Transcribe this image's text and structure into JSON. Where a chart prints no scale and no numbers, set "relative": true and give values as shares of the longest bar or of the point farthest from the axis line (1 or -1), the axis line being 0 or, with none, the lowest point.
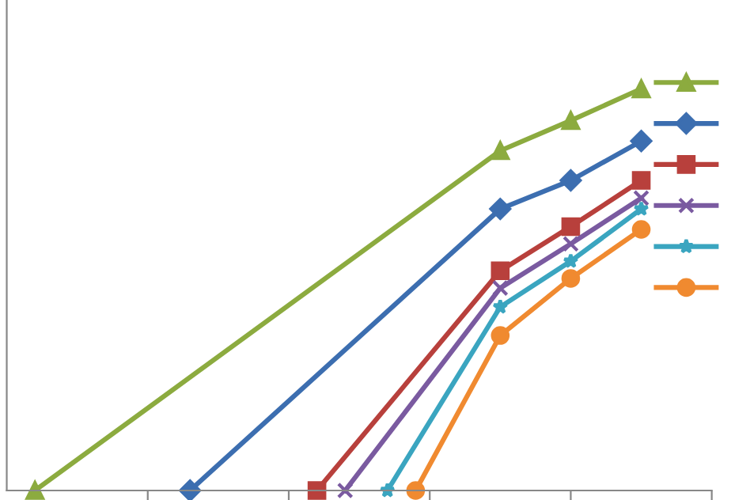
{
  "chart_data": {
    "type": "line",
    "relative": true,
    "line_style": "solid",
    "grid": false,
    "categories": [
      null,
      null,
      null,
      null,
      null,
      null,
      null,
      null,
      null,
      null,
      null,
      null,
      null,
      null,
      null,
      null,
      null,
      null,
      null,
      null,
      null,
      null,
      null,
      null,
      null,
      null,
      null,
      null,
      null,
      null,
      null,
      null,
      null,
      null,
      null,
      null,
      null,
      null,
      null,
      null,
      null,
      null,
      null,
      null
    ],
    "series": [
      {
        "color": "#8cab3f",
        "marker": "triangle",
        "values": [
          0,
          null,
          null,
          null,
          null,
          null,
          null,
          null,
          null,
          null,
          null,
          null,
          null,
          null,
          null,
          null,
          null,
          null,
          null,
          null,
          null,
          null,
          null,
          null,
          null,
          null,
          null,
          null,
          null,
          null,
          null,
          null,
          null,
          0.846,
          null,
          null,
          null,
          null,
          0.921,
          null,
          null,
          null,
          null,
          1
        ]
      },
      {
        "color": "#3c6eb0",
        "marker": "diamond",
        "values": [
          null,
          null,
          null,
          null,
          null,
          null,
          null,
          null,
          null,
          null,
          null,
          0,
          null,
          null,
          null,
          null,
          null,
          null,
          null,
          null,
          null,
          null,
          null,
          null,
          null,
          null,
          null,
          null,
          null,
          null,
          null,
          null,
          null,
          0.701,
          null,
          null,
          null,
          null,
          0.772,
          null,
          null,
          null,
          null,
          0.87
        ]
      },
      {
        "color": "#b8403c",
        "marker": "square",
        "values": [
          null,
          null,
          null,
          null,
          null,
          null,
          null,
          null,
          null,
          null,
          null,
          null,
          null,
          null,
          null,
          null,
          null,
          null,
          null,
          null,
          0,
          null,
          null,
          null,
          null,
          null,
          null,
          null,
          null,
          null,
          null,
          null,
          null,
          0.547,
          null,
          null,
          null,
          null,
          0.657,
          null,
          null,
          null,
          null,
          0.772
        ]
      },
      {
        "color": "#7a5aa0",
        "marker": "cross",
        "values": [
          null,
          null,
          null,
          null,
          null,
          null,
          null,
          null,
          null,
          null,
          null,
          null,
          null,
          null,
          null,
          null,
          null,
          null,
          null,
          null,
          null,
          null,
          0,
          null,
          null,
          null,
          null,
          null,
          null,
          null,
          null,
          null,
          null,
          0.504,
          null,
          null,
          null,
          null,
          0.614,
          null,
          null,
          null,
          null,
          0.728
        ]
      },
      {
        "color": "#3aa5c0",
        "marker": "star",
        "values": [
          null,
          null,
          null,
          null,
          null,
          null,
          null,
          null,
          null,
          null,
          null,
          null,
          null,
          null,
          null,
          null,
          null,
          null,
          null,
          null,
          null,
          null,
          null,
          null,
          null,
          0,
          null,
          null,
          null,
          null,
          null,
          null,
          null,
          0.457,
          null,
          null,
          null,
          null,
          0.571,
          null,
          null,
          null,
          null,
          0.701
        ]
      },
      {
        "color": "#f08a30",
        "marker": "circle",
        "values": [
          null,
          null,
          null,
          null,
          null,
          null,
          null,
          null,
          null,
          null,
          null,
          null,
          null,
          null,
          null,
          null,
          null,
          null,
          null,
          null,
          null,
          null,
          null,
          null,
          null,
          null,
          null,
          0,
          null,
          null,
          null,
          null,
          null,
          0.386,
          null,
          null,
          null,
          null,
          0.528,
          null,
          null,
          null,
          null,
          0.65
        ]
      }
    ]
  }
}
